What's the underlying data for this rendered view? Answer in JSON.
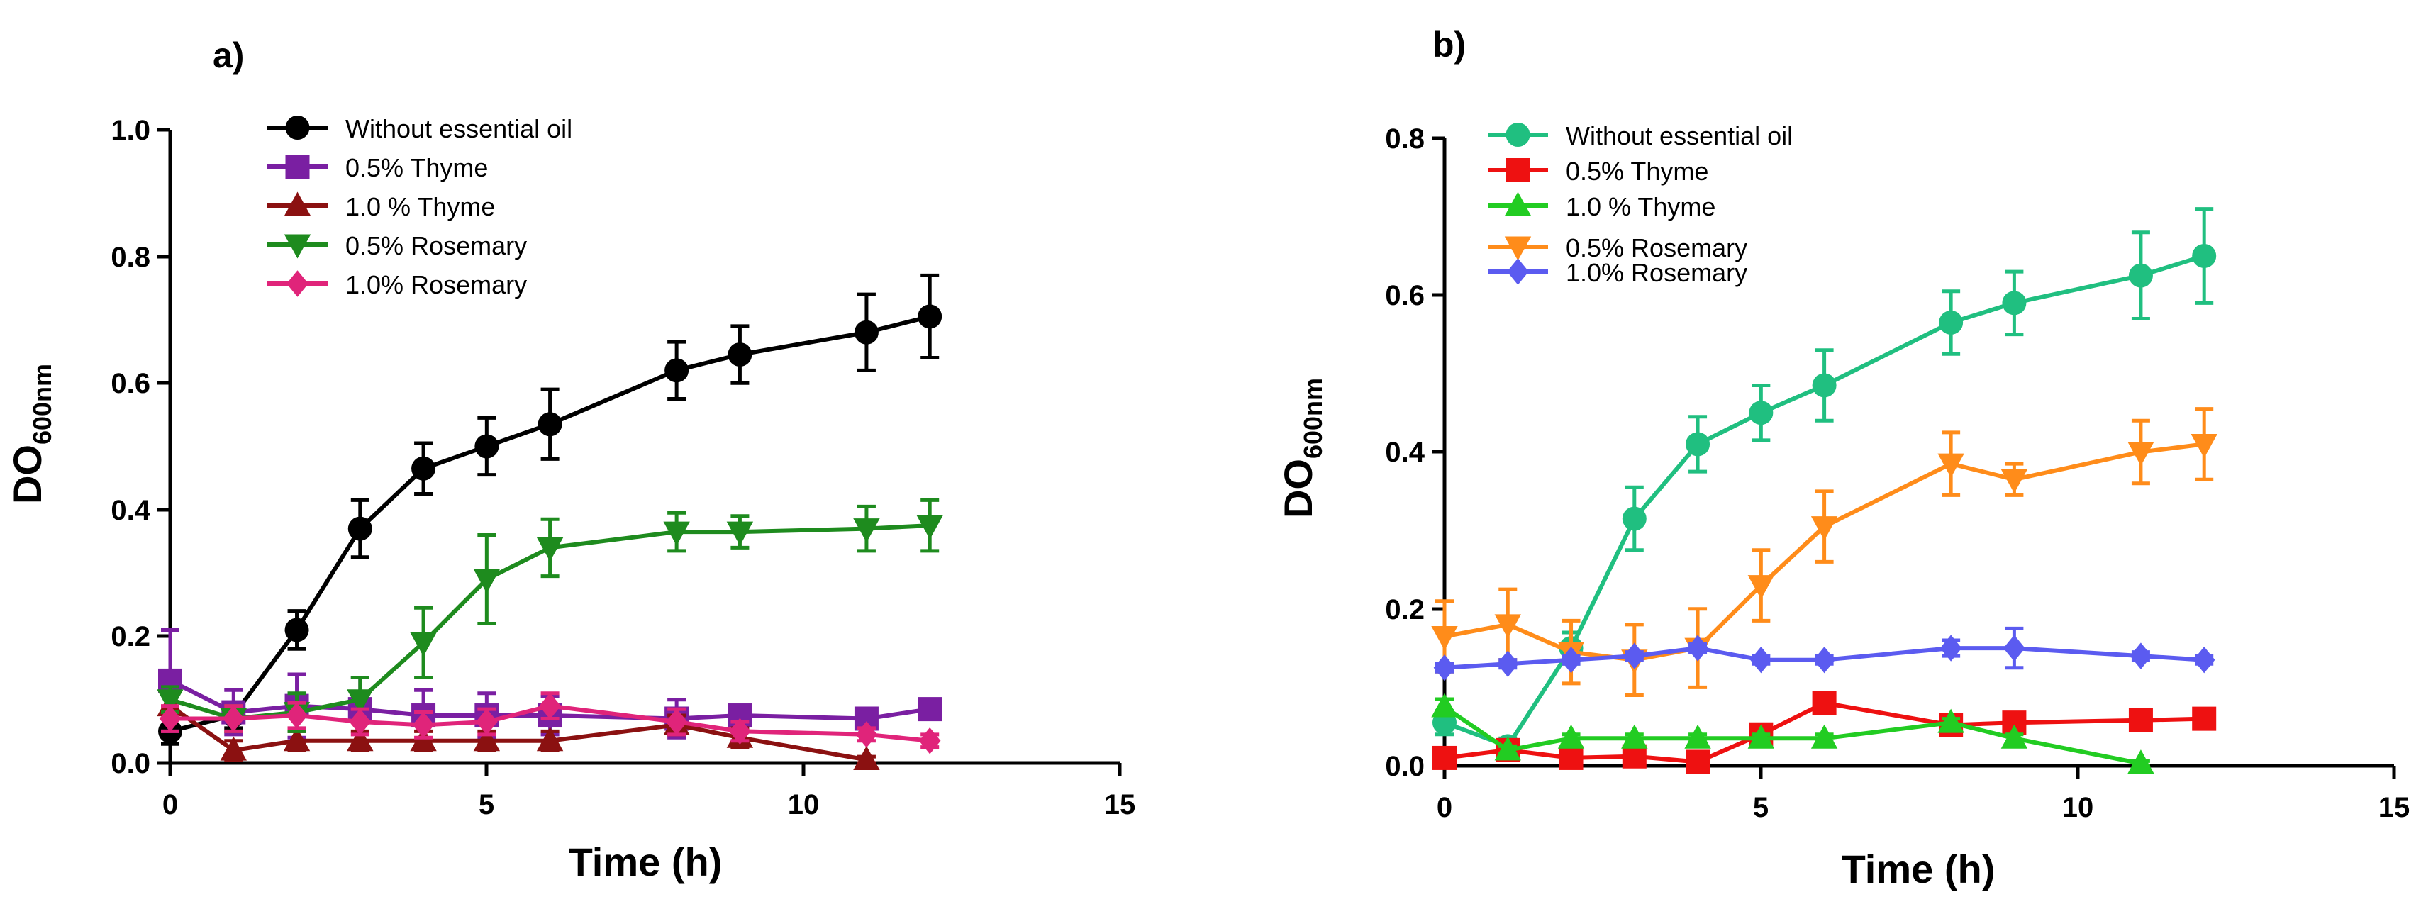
{
  "chart_data": [
    {
      "type": "line",
      "panel_label": "a)",
      "xlabel": "Time (h)",
      "ylabel_main": "DO",
      "ylabel_sub": "600nm",
      "xlim": [
        0,
        15
      ],
      "ylim": [
        0,
        1.0
      ],
      "xticks": [
        0,
        5,
        10,
        15
      ],
      "yticks": [
        "0.0",
        "0.2",
        "0.4",
        "0.6",
        "0.8",
        "1.0"
      ],
      "grid": false,
      "legend_position": "top-left",
      "series": [
        {
          "name": "Without essential oil",
          "color": "#000000",
          "marker": "circle",
          "x": [
            0,
            1,
            2,
            3,
            4,
            5,
            6,
            8,
            9,
            11,
            12
          ],
          "y": [
            0.05,
            0.075,
            0.21,
            0.37,
            0.465,
            0.5,
            0.535,
            0.62,
            0.645,
            0.68,
            0.705
          ],
          "err": [
            0.02,
            0.02,
            0.03,
            0.045,
            0.04,
            0.045,
            0.055,
            0.045,
            0.045,
            0.06,
            0.065
          ]
        },
        {
          "name": "0.5% Thyme",
          "color": "#7a1fa2",
          "marker": "square",
          "x": [
            0,
            1,
            2,
            3,
            4,
            5,
            6,
            8,
            9,
            11,
            12
          ],
          "y": [
            0.13,
            0.08,
            0.09,
            0.085,
            0.075,
            0.075,
            0.075,
            0.07,
            0.075,
            0.07,
            0.085
          ],
          "err": [
            0.08,
            0.035,
            0.05,
            0.05,
            0.04,
            0.035,
            0.03,
            0.03,
            0.015,
            0.015,
            0.015
          ]
        },
        {
          "name": "1.0 % Thyme",
          "color": "#8b1111",
          "marker": "triangle-up",
          "x": [
            0,
            1,
            2,
            3,
            4,
            5,
            6,
            8,
            9,
            11
          ],
          "y": [
            0.09,
            0.02,
            0.035,
            0.035,
            0.035,
            0.035,
            0.035,
            0.06,
            0.04,
            0.005
          ],
          "err": [
            0.02,
            0.015,
            0.015,
            0.015,
            0.015,
            0.015,
            0.015,
            0.015,
            0.015,
            0.005
          ]
        },
        {
          "name": "0.5% Rosemary",
          "color": "#1e8b1e",
          "marker": "triangle-down",
          "x": [
            0,
            1,
            2,
            3,
            4,
            5,
            6,
            8,
            9,
            11,
            12
          ],
          "y": [
            0.1,
            0.07,
            0.08,
            0.1,
            0.19,
            0.29,
            0.34,
            0.365,
            0.365,
            0.37,
            0.375
          ],
          "err": [
            0.02,
            0.02,
            0.03,
            0.035,
            0.055,
            0.07,
            0.045,
            0.03,
            0.025,
            0.035,
            0.04
          ]
        },
        {
          "name": "1.0% Rosemary",
          "color": "#e0247a",
          "marker": "diamond",
          "x": [
            0,
            1,
            2,
            3,
            4,
            5,
            6,
            8,
            9,
            11,
            12
          ],
          "y": [
            0.07,
            0.07,
            0.075,
            0.065,
            0.06,
            0.065,
            0.09,
            0.065,
            0.05,
            0.045,
            0.035
          ],
          "err": [
            0.02,
            0.02,
            0.02,
            0.02,
            0.02,
            0.02,
            0.02,
            0.02,
            0.015,
            0.01,
            0.01
          ]
        }
      ]
    },
    {
      "type": "line",
      "panel_label": "b)",
      "xlabel": "Time (h)",
      "ylabel_main": "DO",
      "ylabel_sub": "600nm",
      "xlim": [
        0,
        15
      ],
      "ylim": [
        0,
        0.8
      ],
      "xticks": [
        0,
        5,
        10,
        15
      ],
      "yticks": [
        "0.0",
        "0.2",
        "0.4",
        "0.6",
        "0.8"
      ],
      "grid": false,
      "legend_position": "top-left",
      "series": [
        {
          "name": "Without essential oil",
          "color": "#20bf80",
          "marker": "circle",
          "x": [
            0,
            1,
            2,
            3,
            4,
            5,
            6,
            8,
            9,
            11,
            12
          ],
          "y": [
            0.055,
            0.025,
            0.15,
            0.315,
            0.41,
            0.45,
            0.485,
            0.565,
            0.59,
            0.625,
            0.65
          ],
          "err": [
            0.015,
            0.01,
            0.02,
            0.04,
            0.035,
            0.035,
            0.045,
            0.04,
            0.04,
            0.055,
            0.06
          ]
        },
        {
          "name": "0.5% Thyme",
          "color": "#ee1111",
          "marker": "square",
          "x": [
            0,
            1,
            2,
            3,
            4,
            5,
            6,
            8,
            9,
            11,
            12
          ],
          "y": [
            0.01,
            0.02,
            0.01,
            0.012,
            0.005,
            0.04,
            0.08,
            0.052,
            0.055,
            0.058,
            0.06
          ],
          "err": [
            0.005,
            0.005,
            0.005,
            0.005,
            0.005,
            0.005,
            0.005,
            0.005,
            0.005,
            0.005,
            0.005
          ]
        },
        {
          "name": "1.0 % Thyme",
          "color": "#22cc22",
          "marker": "triangle-up",
          "x": [
            0,
            1,
            2,
            3,
            4,
            5,
            6,
            8,
            9,
            11
          ],
          "y": [
            0.075,
            0.02,
            0.035,
            0.035,
            0.035,
            0.035,
            0.035,
            0.055,
            0.035,
            0.003
          ],
          "err": [
            0.01,
            0.005,
            0.005,
            0.005,
            0.005,
            0.005,
            0.005,
            0.005,
            0.005,
            0.003
          ]
        },
        {
          "name": "0.5% Rosemary",
          "color": "#ff8c1a",
          "marker": "triangle-down",
          "x": [
            0,
            1,
            2,
            3,
            4,
            5,
            6,
            8,
            9,
            11,
            12
          ],
          "y": [
            0.165,
            0.18,
            0.145,
            0.135,
            0.15,
            0.23,
            0.305,
            0.385,
            0.365,
            0.4,
            0.41
          ],
          "err": [
            0.045,
            0.045,
            0.04,
            0.045,
            0.05,
            0.045,
            0.045,
            0.04,
            0.02,
            0.04,
            0.045
          ]
        },
        {
          "name": "1.0% Rosemary",
          "color": "#5b5bf0",
          "marker": "diamond",
          "x": [
            0,
            1,
            2,
            3,
            4,
            5,
            6,
            8,
            9,
            11,
            12
          ],
          "y": [
            0.125,
            0.13,
            0.135,
            0.14,
            0.15,
            0.135,
            0.135,
            0.15,
            0.15,
            0.14,
            0.135
          ],
          "err": [
            0.005,
            0.005,
            0.005,
            0.005,
            0.005,
            0.005,
            0.005,
            0.01,
            0.025,
            0.005,
            0.005
          ]
        }
      ]
    }
  ]
}
